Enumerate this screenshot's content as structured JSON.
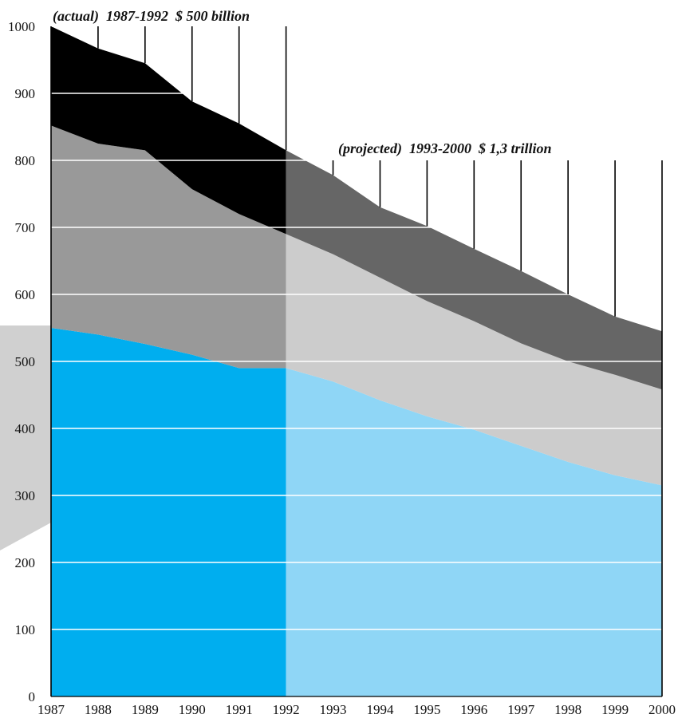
{
  "chart_data": {
    "type": "area",
    "x": [
      1987,
      1988,
      1989,
      1990,
      1991,
      1992,
      1993,
      1994,
      1995,
      1996,
      1997,
      1998,
      1999,
      2000
    ],
    "xlim": [
      1987,
      2000
    ],
    "ylim": [
      0,
      1000
    ],
    "y_ticks": [
      0,
      100,
      200,
      300,
      400,
      500,
      600,
      700,
      800,
      900,
      1000
    ],
    "grid": true,
    "actual_range": [
      1987,
      1992
    ],
    "series": [
      {
        "values": [
          550,
          540,
          526,
          510,
          490,
          490,
          470,
          442,
          418,
          398,
          374,
          350,
          330,
          315
        ],
        "color_actual": "#00aeef",
        "color_projected": "#8fd6f6"
      },
      {
        "values": [
          852,
          825,
          815,
          757,
          720,
          690,
          660,
          625,
          590,
          560,
          527,
          500,
          480,
          458
        ],
        "color_actual": "#999999",
        "color_projected": "#cccccc"
      },
      {
        "values": [
          1000,
          967,
          945,
          888,
          855,
          815,
          778,
          730,
          702,
          668,
          635,
          600,
          567,
          545
        ],
        "color_actual": "#000000",
        "color_projected": "#666666"
      }
    ],
    "annotations": [
      {
        "text": "(actual)  1987-1992  $ 500 billion"
      },
      {
        "text": "(projected)  1993-2000  $ 1,3 trillion"
      }
    ]
  }
}
